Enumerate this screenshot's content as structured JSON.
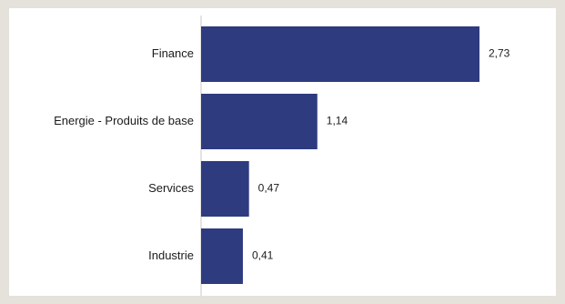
{
  "chart_data": {
    "type": "bar",
    "orientation": "horizontal",
    "categories": [
      "Finance",
      "Energie - Produits de base",
      "Services",
      "Industrie"
    ],
    "values": [
      2.73,
      1.14,
      0.47,
      0.41
    ],
    "value_labels": [
      "2,73",
      "1,14",
      "0,47",
      "0,41"
    ],
    "xlim": [
      0,
      2.73
    ],
    "bar_color": "#2e3b7f",
    "axis_color": "#c9c9c9",
    "grid": false,
    "legend": "none"
  }
}
